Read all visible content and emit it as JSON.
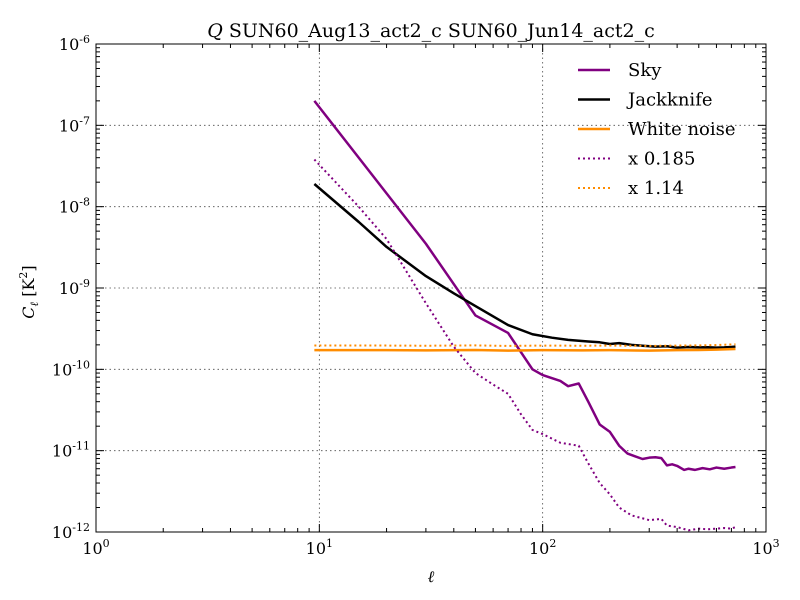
{
  "chart_data": {
    "type": "line",
    "title_prefix": "Q",
    "title_rest": " SUN60_Aug13_act2_c SUN60_Jun14_act2_c",
    "xlabel": "ℓ",
    "ylabel_main": "C",
    "ylabel_sub": "ℓ",
    "ylabel_units": " [K",
    "ylabel_exp": "2",
    "ylabel_close": "]",
    "xscale": "log",
    "yscale": "log",
    "xlim": [
      1,
      1000
    ],
    "ylim": [
      1e-12,
      1e-06
    ],
    "grid": true,
    "legend_position": "top-right",
    "x_ticks": [
      {
        "value": 1,
        "base": "10",
        "exp": "0"
      },
      {
        "value": 10,
        "base": "10",
        "exp": "1"
      },
      {
        "value": 100,
        "base": "10",
        "exp": "2"
      },
      {
        "value": 1000,
        "base": "10",
        "exp": "3"
      }
    ],
    "y_ticks": [
      {
        "value": 1e-12,
        "base": "10",
        "exp": "-12"
      },
      {
        "value": 1e-11,
        "base": "10",
        "exp": "-11"
      },
      {
        "value": 1e-10,
        "base": "10",
        "exp": "-10"
      },
      {
        "value": 1e-09,
        "base": "10",
        "exp": "-9"
      },
      {
        "value": 1e-08,
        "base": "10",
        "exp": "-8"
      },
      {
        "value": 1e-07,
        "base": "10",
        "exp": "-7"
      },
      {
        "value": 1e-06,
        "base": "10",
        "exp": "-6"
      }
    ],
    "series": [
      {
        "name": "Sky",
        "color": "#800080",
        "style": "solid",
        "x": [
          9.5,
          30,
          50,
          70,
          90,
          100,
          120,
          130,
          145,
          160,
          180,
          200,
          220,
          240,
          260,
          280,
          300,
          320,
          340,
          360,
          380,
          400,
          430,
          450,
          480,
          520,
          560,
          600,
          650,
          700,
          730
        ],
        "y": [
          2e-07,
          3.5e-09,
          4.6e-10,
          2.8e-10,
          1e-10,
          8.5e-11,
          7.2e-11,
          6.2e-11,
          6.7e-11,
          4e-11,
          2.1e-11,
          1.7e-11,
          1.15e-11,
          9.2e-12,
          8.5e-12,
          7.9e-12,
          8.2e-12,
          8.3e-12,
          8.1e-12,
          6.6e-12,
          6.8e-12,
          6.5e-12,
          5.8e-12,
          6e-12,
          5.8e-12,
          6.1e-12,
          5.9e-12,
          6.2e-12,
          6e-12,
          6.2e-12,
          6.3e-12
        ]
      },
      {
        "name": "Jackknife",
        "color": "#000000",
        "style": "solid",
        "x": [
          9.5,
          15,
          20,
          30,
          40,
          50,
          70,
          90,
          110,
          130,
          160,
          180,
          200,
          220,
          250,
          280,
          320,
          360,
          400,
          450,
          500,
          550,
          600,
          650,
          700,
          730
        ],
        "y": [
          1.9e-08,
          6.5e-09,
          3.2e-09,
          1.4e-09,
          8.6e-10,
          6e-10,
          3.5e-10,
          2.7e-10,
          2.45e-10,
          2.3e-10,
          2.2e-10,
          2.15e-10,
          2.05e-10,
          2.1e-10,
          2e-10,
          1.95e-10,
          1.9e-10,
          1.92e-10,
          1.85e-10,
          1.88e-10,
          1.86e-10,
          1.87e-10,
          1.85e-10,
          1.86e-10,
          1.88e-10,
          1.9e-10
        ]
      },
      {
        "name": "White noise",
        "color": "#ff8c00",
        "style": "solid",
        "x": [
          9.5,
          20,
          30,
          50,
          70,
          100,
          150,
          200,
          300,
          400,
          500,
          600,
          730
        ],
        "y": [
          1.72e-10,
          1.72e-10,
          1.71e-10,
          1.73e-10,
          1.7e-10,
          1.72e-10,
          1.71e-10,
          1.72e-10,
          1.7e-10,
          1.72e-10,
          1.73e-10,
          1.75e-10,
          1.78e-10
        ]
      },
      {
        "name": "x 0.185",
        "color": "#800080",
        "style": "dotted",
        "x": [
          9.5,
          15,
          20,
          30,
          40,
          50,
          60,
          70,
          80,
          90,
          100,
          120,
          145,
          160,
          180,
          200,
          220,
          250,
          300,
          340,
          360,
          400,
          450,
          500,
          550,
          600,
          650,
          700,
          730
        ],
        "y": [
          3.8e-08,
          1e-08,
          4e-09,
          6.5e-10,
          1.9e-10,
          9e-11,
          6.5e-11,
          5e-11,
          2.8e-11,
          1.8e-11,
          1.6e-11,
          1.25e-11,
          1.15e-11,
          7e-12,
          4e-12,
          2.9e-12,
          2e-12,
          1.6e-12,
          1.4e-12,
          1.45e-12,
          1.2e-12,
          1.15e-12,
          1.05e-12,
          1.1e-12,
          1.08e-12,
          1.1e-12,
          1.12e-12,
          1.1e-12,
          1.15e-12
        ]
      },
      {
        "name": "x 1.14",
        "color": "#ff8c00",
        "style": "dotted",
        "x": [
          9.5,
          20,
          30,
          50,
          70,
          100,
          150,
          200,
          300,
          400,
          500,
          600,
          730
        ],
        "y": [
          1.96e-10,
          1.96e-10,
          1.95e-10,
          1.97e-10,
          1.94e-10,
          1.96e-10,
          1.95e-10,
          1.96e-10,
          1.94e-10,
          1.96e-10,
          1.97e-10,
          1.99e-10,
          2.03e-10
        ]
      }
    ]
  }
}
